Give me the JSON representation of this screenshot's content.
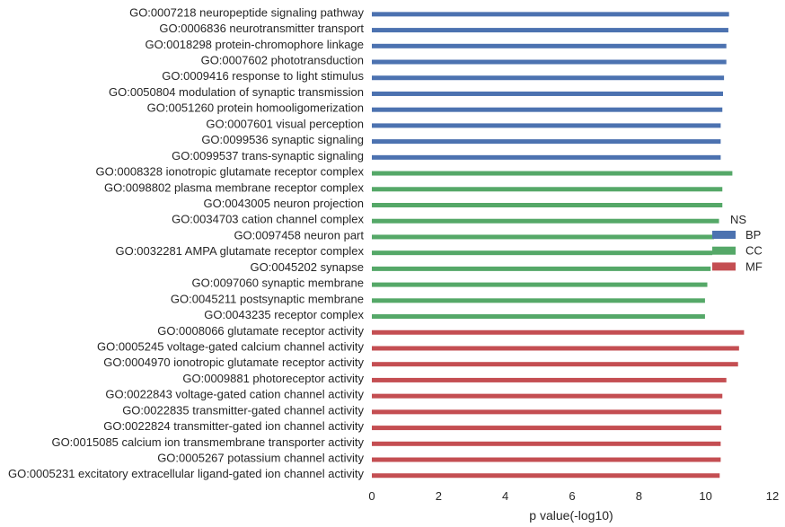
{
  "chart_data": {
    "type": "bar",
    "orientation": "horizontal",
    "xlabel": "p value(-log10)",
    "ylabel": "",
    "xlim": [
      0,
      12
    ],
    "xticks": [
      0,
      2,
      4,
      6,
      8,
      10,
      12
    ],
    "grid": false,
    "legend": {
      "title": "NS",
      "placement": "right",
      "entries": [
        {
          "name": "BP",
          "color": "#4c72b0"
        },
        {
          "name": "CC",
          "color": "#55a868"
        },
        {
          "name": "MF",
          "color": "#c44e52"
        }
      ]
    },
    "categories": [
      {
        "label": "GO:0007218 neuropeptide signaling pathway",
        "value": 10.7,
        "group": "BP"
      },
      {
        "label": "GO:0006836 neurotransmitter transport",
        "value": 10.68,
        "group": "BP"
      },
      {
        "label": "GO:0018298 protein-chromophore linkage",
        "value": 10.62,
        "group": "BP"
      },
      {
        "label": "GO:0007602 phototransduction",
        "value": 10.62,
        "group": "BP"
      },
      {
        "label": "GO:0009416 response to light stimulus",
        "value": 10.55,
        "group": "BP"
      },
      {
        "label": "GO:0050804 modulation of synaptic transmission",
        "value": 10.52,
        "group": "BP"
      },
      {
        "label": "GO:0051260 protein homooligomerization",
        "value": 10.5,
        "group": "BP"
      },
      {
        "label": "GO:0007601 visual perception",
        "value": 10.45,
        "group": "BP"
      },
      {
        "label": "GO:0099536 synaptic signaling",
        "value": 10.45,
        "group": "BP"
      },
      {
        "label": "GO:0099537 trans-synaptic signaling",
        "value": 10.45,
        "group": "BP"
      },
      {
        "label": "GO:0008328 ionotropic glutamate receptor complex",
        "value": 10.8,
        "group": "CC"
      },
      {
        "label": "GO:0098802 plasma membrane receptor complex",
        "value": 10.5,
        "group": "CC"
      },
      {
        "label": "GO:0043005 neuron projection",
        "value": 10.5,
        "group": "CC"
      },
      {
        "label": "GO:0034703 cation channel complex",
        "value": 10.4,
        "group": "CC"
      },
      {
        "label": "GO:0097458 neuron part",
        "value": 10.25,
        "group": "CC"
      },
      {
        "label": "GO:0032281 AMPA glutamate receptor complex",
        "value": 10.2,
        "group": "CC"
      },
      {
        "label": "GO:0045202 synapse",
        "value": 10.15,
        "group": "CC"
      },
      {
        "label": "GO:0097060 synaptic membrane",
        "value": 10.05,
        "group": "CC"
      },
      {
        "label": "GO:0045211 postsynaptic membrane",
        "value": 9.98,
        "group": "CC"
      },
      {
        "label": "GO:0043235 receptor complex",
        "value": 9.98,
        "group": "CC"
      },
      {
        "label": "GO:0008066 glutamate receptor activity",
        "value": 11.15,
        "group": "MF"
      },
      {
        "label": "GO:0005245 voltage-gated calcium channel activity",
        "value": 11.0,
        "group": "MF"
      },
      {
        "label": "GO:0004970 ionotropic glutamate receptor activity",
        "value": 10.97,
        "group": "MF"
      },
      {
        "label": "GO:0009881 photoreceptor activity",
        "value": 10.62,
        "group": "MF"
      },
      {
        "label": "GO:0022843 voltage-gated cation channel activity",
        "value": 10.5,
        "group": "MF"
      },
      {
        "label": "GO:0022835 transmitter-gated channel activity",
        "value": 10.47,
        "group": "MF"
      },
      {
        "label": "GO:0022824 transmitter-gated ion channel activity",
        "value": 10.47,
        "group": "MF"
      },
      {
        "label": "GO:0015085 calcium ion transmembrane transporter activity",
        "value": 10.45,
        "group": "MF"
      },
      {
        "label": "GO:0005267 potassium channel activity",
        "value": 10.45,
        "group": "MF"
      },
      {
        "label": "GO:0005231 excitatory extracellular ligand-gated ion channel activity",
        "value": 10.42,
        "group": "MF"
      }
    ]
  }
}
